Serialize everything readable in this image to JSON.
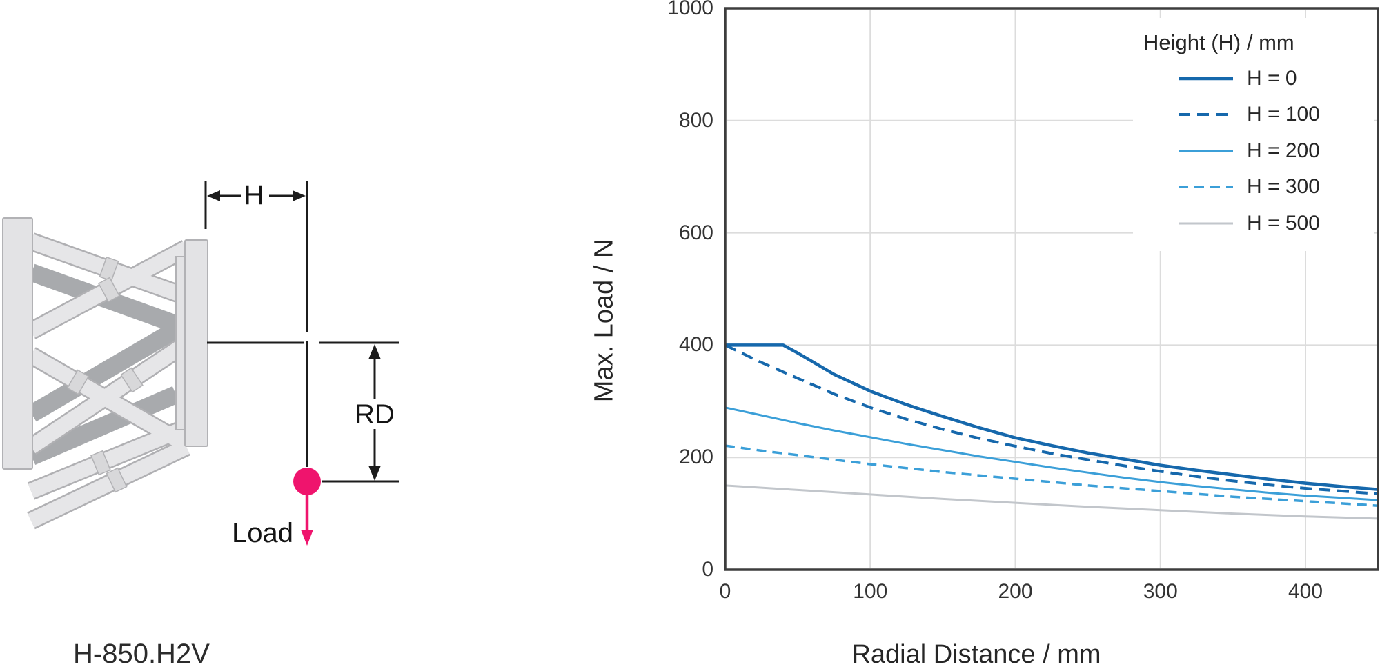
{
  "diagram": {
    "caption": "H-850.H2V",
    "h_label": "H",
    "rd_label": "RD",
    "load_label": "Load",
    "accent_color": "#ef146d"
  },
  "chart_data": {
    "type": "line",
    "title": "",
    "xlabel": "Radial Distance / mm",
    "ylabel": "Max. Load / N",
    "xlim": [
      0,
      450
    ],
    "ylim": [
      0,
      1000
    ],
    "x_ticks": [
      0,
      100,
      200,
      300,
      400
    ],
    "y_ticks": [
      0,
      200,
      400,
      600,
      800,
      1000
    ],
    "grid": true,
    "legend_position": "top-right",
    "legend_title": "Height (H) / mm",
    "series": [
      {
        "name": "H = 0",
        "color": "#1668ac",
        "dash": "solid",
        "width": 4.5,
        "points": [
          [
            0,
            400
          ],
          [
            40,
            400
          ],
          [
            50,
            386
          ],
          [
            75,
            348
          ],
          [
            100,
            318
          ],
          [
            125,
            294
          ],
          [
            150,
            273
          ],
          [
            175,
            253
          ],
          [
            200,
            235
          ],
          [
            225,
            221
          ],
          [
            250,
            208
          ],
          [
            275,
            197
          ],
          [
            300,
            186
          ],
          [
            325,
            177
          ],
          [
            350,
            169
          ],
          [
            375,
            161
          ],
          [
            400,
            154
          ],
          [
            425,
            148
          ],
          [
            450,
            143
          ]
        ]
      },
      {
        "name": "H = 100",
        "color": "#1668ac",
        "dash": "dashed",
        "dash_pattern": "17 10",
        "width": 4,
        "points": [
          [
            0,
            400
          ],
          [
            25,
            369
          ],
          [
            50,
            341
          ],
          [
            75,
            313
          ],
          [
            100,
            289
          ],
          [
            125,
            268
          ],
          [
            150,
            250
          ],
          [
            175,
            234
          ],
          [
            200,
            220
          ],
          [
            225,
            207
          ],
          [
            250,
            196
          ],
          [
            275,
            185
          ],
          [
            300,
            175
          ],
          [
            325,
            166
          ],
          [
            350,
            158
          ],
          [
            375,
            151
          ],
          [
            400,
            145
          ],
          [
            425,
            140
          ],
          [
            450,
            135
          ]
        ]
      },
      {
        "name": "H = 200",
        "color": "#3b9fd8",
        "dash": "solid",
        "width": 3,
        "points": [
          [
            0,
            289
          ],
          [
            25,
            275
          ],
          [
            50,
            261
          ],
          [
            75,
            248
          ],
          [
            100,
            236
          ],
          [
            125,
            224
          ],
          [
            150,
            213
          ],
          [
            175,
            202
          ],
          [
            200,
            192
          ],
          [
            225,
            182
          ],
          [
            250,
            173
          ],
          [
            275,
            164
          ],
          [
            300,
            156
          ],
          [
            325,
            149
          ],
          [
            350,
            143
          ],
          [
            375,
            137
          ],
          [
            400,
            132
          ],
          [
            425,
            128
          ],
          [
            450,
            124
          ]
        ]
      },
      {
        "name": "H = 300",
        "color": "#3b9fd8",
        "dash": "dashed",
        "dash_pattern": "14 9",
        "width": 3.5,
        "points": [
          [
            0,
            221
          ],
          [
            25,
            212
          ],
          [
            50,
            204
          ],
          [
            75,
            196
          ],
          [
            100,
            188
          ],
          [
            125,
            181
          ],
          [
            150,
            174
          ],
          [
            175,
            168
          ],
          [
            200,
            162
          ],
          [
            225,
            156
          ],
          [
            250,
            150
          ],
          [
            275,
            145
          ],
          [
            300,
            140
          ],
          [
            325,
            135
          ],
          [
            350,
            130
          ],
          [
            375,
            126
          ],
          [
            400,
            122
          ],
          [
            425,
            118
          ],
          [
            450,
            114
          ]
        ]
      },
      {
        "name": "H = 500",
        "color": "#c2c6cb",
        "dash": "solid",
        "width": 3,
        "points": [
          [
            0,
            150
          ],
          [
            50,
            142
          ],
          [
            100,
            134
          ],
          [
            150,
            126
          ],
          [
            200,
            119
          ],
          [
            250,
            112
          ],
          [
            300,
            106
          ],
          [
            350,
            100
          ],
          [
            400,
            95
          ],
          [
            450,
            91
          ]
        ]
      }
    ]
  }
}
